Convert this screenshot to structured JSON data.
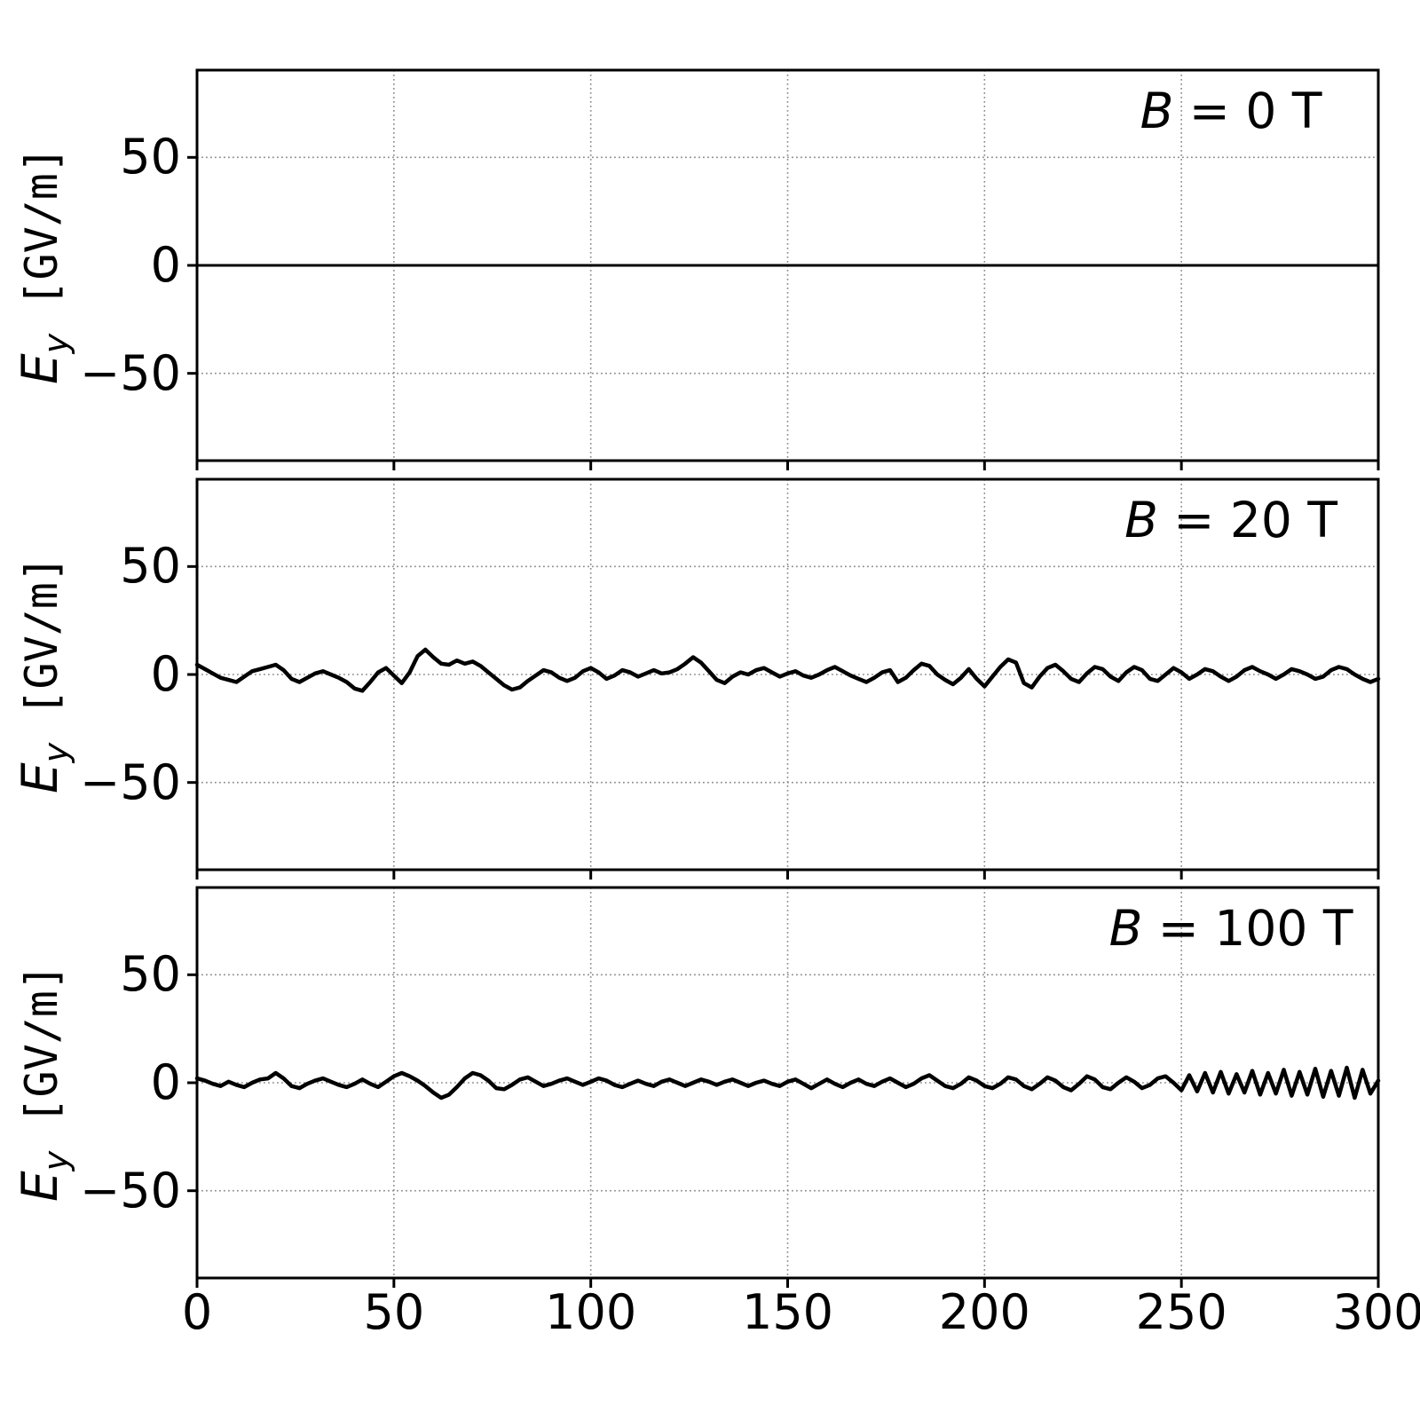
{
  "figure": {
    "background": "#ffffff",
    "colors": {
      "line": "#000000",
      "spine": "#000000",
      "grid": "#8c8c8c",
      "text": "#000000"
    }
  },
  "chart_data": {
    "type": "line",
    "title": "",
    "xlabel": "",
    "ylabel": "Ey [GV/m]",
    "ylabel_symbol": "E",
    "ylabel_sub": "y",
    "ylabel_units": " [GV/m]",
    "xlim": [
      0,
      300
    ],
    "ylim": [
      -90.4,
      90.4
    ],
    "xtick_values": [
      0,
      50,
      100,
      150,
      200,
      250,
      300
    ],
    "xtick_labels": [
      "0",
      "50",
      "100",
      "150",
      "200",
      "250",
      "300"
    ],
    "ytick_values": [
      50,
      0,
      -50
    ],
    "ytick_labels": [
      "50",
      "0",
      "−50"
    ],
    "grid": "dotted",
    "legend": "none",
    "panels": [
      {
        "label": "B = 0 T",
        "label_symbol": "B",
        "label_rest": " = 0 T",
        "x_start": 0,
        "x_step": 300,
        "linewidth_hint": 3,
        "y": [
          0,
          0
        ]
      },
      {
        "label": "B = 20 T",
        "label_symbol": "B",
        "label_rest": " = 20 T",
        "x_start": 0,
        "x_step": 2,
        "linewidth_hint": 4.5,
        "y": [
          4.5,
          2.5,
          0.5,
          -1.5,
          -2.5,
          -3.5,
          -1,
          1.5,
          2.5,
          3.5,
          4.5,
          2,
          -2,
          -3.5,
          -1.5,
          0.5,
          1.5,
          0,
          -1.5,
          -3.5,
          -6.5,
          -7.5,
          -3.5,
          1,
          3,
          -0.5,
          -4,
          1,
          8.5,
          11.5,
          8,
          5,
          4.5,
          6.5,
          5,
          6,
          4,
          1,
          -2,
          -5,
          -7,
          -6,
          -3,
          -0.5,
          2,
          1,
          -1.5,
          -3,
          -1.5,
          1.5,
          3,
          1,
          -2,
          -0.5,
          2,
          1,
          -1,
          0.5,
          2,
          0.5,
          1,
          2.5,
          5,
          8,
          5.5,
          1.5,
          -2.5,
          -4,
          -1,
          1,
          0,
          2,
          3,
          1,
          -1,
          0.5,
          1.5,
          -0.5,
          -1.5,
          0,
          2,
          3.5,
          1.5,
          -0.5,
          -2,
          -3.5,
          -1.5,
          1,
          2,
          -3.5,
          -1.5,
          2,
          5,
          4,
          0,
          -2.5,
          -4.5,
          -1.5,
          2.5,
          -2,
          -5.5,
          -1,
          3.5,
          7,
          5.5,
          -4,
          -6,
          -1,
          3,
          4.5,
          1.5,
          -2,
          -3.5,
          0.5,
          3.5,
          2.5,
          -1,
          -3,
          1,
          3.5,
          2,
          -2,
          -3,
          0,
          3,
          1,
          -2,
          0,
          2.5,
          1.5,
          -1,
          -3,
          -1,
          2,
          3.5,
          1.5,
          0,
          -2,
          0,
          2.5,
          1.5,
          0,
          -2,
          -1,
          2,
          3.5,
          2.5,
          0,
          -2,
          -3.5,
          -2
        ]
      },
      {
        "label": "B = 100 T",
        "label_symbol": "B",
        "label_rest": " = 100 T",
        "x_start": 0,
        "x_step": 2,
        "linewidth_hint": 4.5,
        "y": [
          2,
          1,
          -0.5,
          -1.5,
          0.5,
          -1,
          -2,
          0,
          1.5,
          2,
          4.5,
          2,
          -1.5,
          -2.5,
          -0.5,
          1,
          2,
          0.5,
          -1,
          -2,
          -0.5,
          1.5,
          -0.5,
          -2,
          0.5,
          3,
          4.5,
          3,
          1,
          -1.5,
          -4.5,
          -7,
          -5.5,
          -2,
          2,
          4.5,
          3.5,
          1,
          -2.5,
          -3,
          -1,
          1.5,
          2.5,
          0.5,
          -1.5,
          -0.5,
          1,
          2,
          0.5,
          -1,
          0.5,
          2,
          1,
          -1,
          -2,
          -0.5,
          1,
          -0.5,
          -1.5,
          0.5,
          1.5,
          0,
          -1.5,
          0,
          1.5,
          0.5,
          -1,
          0.5,
          1.5,
          0,
          -1.5,
          0,
          1,
          -0.5,
          -1.5,
          0.5,
          1.5,
          -0.5,
          -2.5,
          -0.5,
          1.5,
          -0.5,
          -2,
          0,
          1.5,
          -0.5,
          -1.5,
          0.5,
          2,
          0,
          -2,
          -0.5,
          2,
          3.5,
          1,
          -1.5,
          -2.5,
          -0.5,
          2.5,
          1,
          -1.5,
          -2.5,
          -0.5,
          2.5,
          1.5,
          -1.5,
          -3,
          -0.5,
          2.5,
          1,
          -2,
          -3.5,
          -0.5,
          3,
          1.5,
          -2,
          -3,
          0,
          2.5,
          0.5,
          -2.5,
          -1,
          2,
          3,
          0,
          -3.5,
          3.5,
          -4,
          4.5,
          -4.5,
          5,
          -5,
          4,
          -4.5,
          5.5,
          -5.5,
          4.5,
          -5,
          6,
          -6,
          5,
          -5.5,
          6.5,
          -6.5,
          5.5,
          -6,
          7,
          -7,
          6,
          -5,
          1
        ]
      }
    ]
  }
}
